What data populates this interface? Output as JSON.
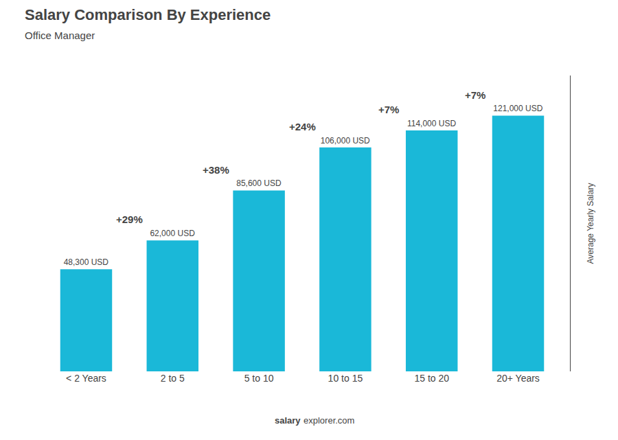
{
  "chart_data": {
    "type": "bar",
    "title": "Salary Comparison By Experience",
    "subtitle": "Office Manager",
    "y_label": "Average Yearly Salary",
    "categories": [
      "< 2 Years",
      "2 to 5",
      "5 to 10",
      "10 to 15",
      "15 to 20",
      "20+ Years"
    ],
    "values": [
      48300,
      62000,
      85600,
      106000,
      114000,
      121000
    ],
    "value_labels": [
      "48,300 USD",
      "62,000 USD",
      "85,600 USD",
      "106,000 USD",
      "114,000 USD",
      "121,000 USD"
    ],
    "data_labels": true,
    "annotations": [
      "+29%",
      "+38%",
      "+24%",
      "+7%",
      "+7%"
    ],
    "footer": [
      "salary",
      "explorer.com"
    ],
    "color": "#1ab8d8",
    "ylim": [
      0,
      140000
    ],
    "tick_labels": "x",
    "grid": false
  }
}
